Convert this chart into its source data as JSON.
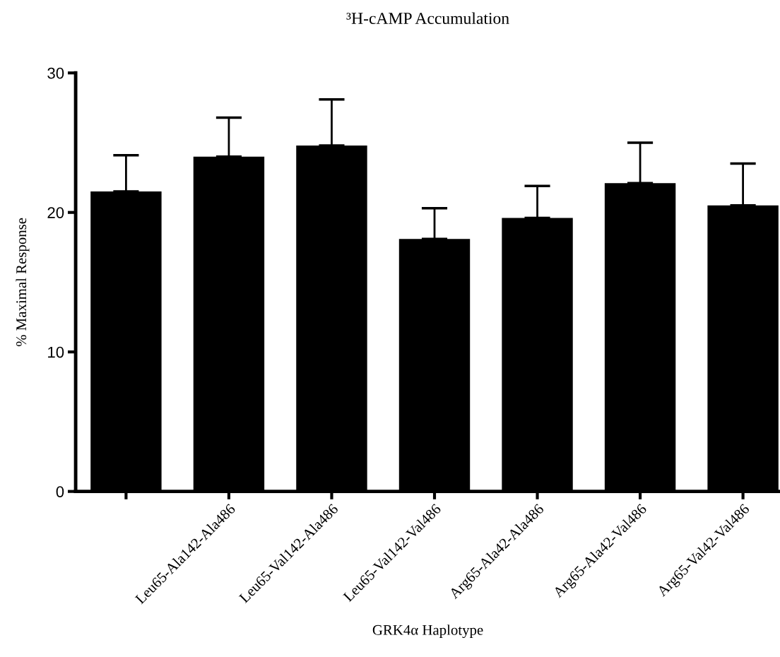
{
  "chart_data": {
    "type": "bar",
    "title": "³H-cAMP Accumulation",
    "xlabel": "GRK4α Haplotype",
    "ylabel": "% Maximal Response",
    "categories": [
      null,
      "Leu65-Ala142-Ala486",
      "Leu65-Val142-Ala486",
      "Leu65-Val142-Val486",
      "Arg65-Ala42-Ala486",
      "Arg65-Ala42-Val486",
      "Arg65-Val42-Val486"
    ],
    "values": [
      21.5,
      24.0,
      24.8,
      18.1,
      19.6,
      22.1,
      20.5
    ],
    "errors": [
      [
        21.5,
        24.1
      ],
      [
        24.0,
        26.8
      ],
      [
        24.8,
        28.1
      ],
      [
        18.1,
        20.3
      ],
      [
        19.6,
        21.9
      ],
      [
        22.1,
        25.0
      ],
      [
        20.5,
        23.5
      ]
    ],
    "color": "#000000",
    "ylim": [
      0,
      30
    ],
    "yticks": [
      0,
      10,
      20,
      30
    ],
    "grid": false
  }
}
